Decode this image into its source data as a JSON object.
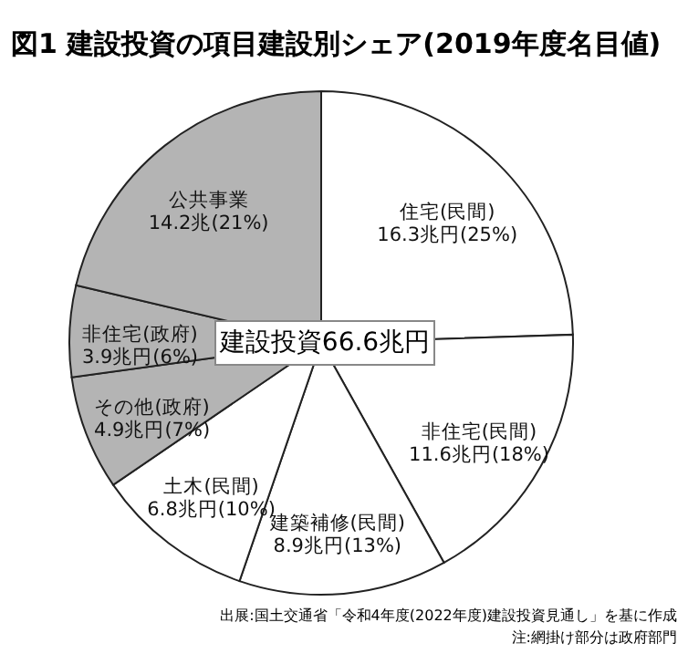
{
  "chart_data": {
    "type": "pie",
    "title": "図1 建設投資の項目建設別シェア(2019年度名目値)",
    "categories": [
      "住宅(民間)",
      "非住宅(民間)",
      "建築補修(民間)",
      "土木(民間)",
      "その他(政府)",
      "非住宅(政府)",
      "公共事業"
    ],
    "values": [
      16.3,
      11.6,
      8.9,
      6.8,
      4.9,
      3.9,
      14.2
    ],
    "value_labels": [
      "16.3兆円(25%)",
      "11.6兆円(18%)",
      "8.9兆円(13%)",
      "6.8兆円(10%)",
      "4.9兆円(7%)",
      "3.9兆円(6%)",
      "14.2兆(21%)"
    ],
    "colors": [
      "#ffffff",
      "#ffffff",
      "#ffffff",
      "#ffffff",
      "#b4b4b4",
      "#b4b4b4",
      "#b4b4b4"
    ],
    "annotations": [
      "建設投資66.6兆円",
      "出展:国土交通省「令和4年度(2022年度)建設投資見通し」を基に作成",
      "注:網掛け部分は政府部門"
    ]
  }
}
